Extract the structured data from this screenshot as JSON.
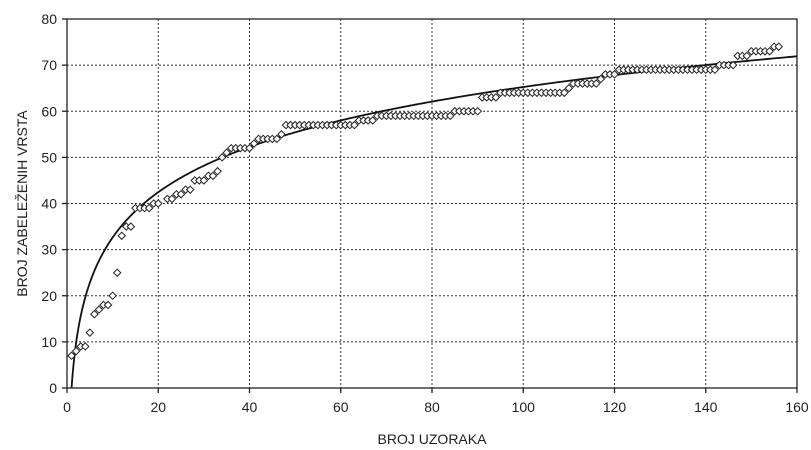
{
  "chart_data": {
    "type": "scatter",
    "title": "",
    "xlabel": "BROJ UZORAKA",
    "ylabel": "BROJ ZABELEŽENIH VRSTA",
    "xlim": [
      0,
      160
    ],
    "ylim": [
      0,
      80
    ],
    "x_ticks": [
      0,
      20,
      40,
      60,
      80,
      100,
      120,
      140,
      160
    ],
    "y_ticks": [
      0,
      10,
      20,
      30,
      40,
      50,
      60,
      70,
      80
    ],
    "grid": true,
    "marker": "diamond",
    "series": [
      {
        "points": [
          [
            1,
            7
          ],
          [
            2,
            8
          ],
          [
            3,
            9
          ],
          [
            4,
            9
          ],
          [
            5,
            12
          ],
          [
            6,
            16
          ],
          [
            7,
            17
          ],
          [
            8,
            18
          ],
          [
            9,
            18
          ],
          [
            10,
            20
          ],
          [
            11,
            25
          ],
          [
            12,
            33
          ],
          [
            13,
            35
          ],
          [
            14,
            35
          ],
          [
            15,
            39
          ],
          [
            16,
            39
          ],
          [
            17,
            39
          ],
          [
            18,
            39
          ],
          [
            19,
            40
          ],
          [
            20,
            40
          ],
          [
            22,
            41
          ],
          [
            23,
            41
          ],
          [
            24,
            42
          ],
          [
            25,
            42
          ],
          [
            26,
            43
          ],
          [
            27,
            43
          ],
          [
            28,
            45
          ],
          [
            29,
            45
          ],
          [
            30,
            45
          ],
          [
            31,
            46
          ],
          [
            32,
            46
          ],
          [
            33,
            47
          ],
          [
            34,
            50
          ],
          [
            35,
            51
          ],
          [
            36,
            52
          ],
          [
            37,
            52
          ],
          [
            38,
            52
          ],
          [
            39,
            52
          ],
          [
            40,
            52
          ],
          [
            41,
            53
          ],
          [
            42,
            54
          ],
          [
            43,
            54
          ],
          [
            44,
            54
          ],
          [
            45,
            54
          ],
          [
            46,
            54
          ],
          [
            47,
            55
          ],
          [
            48,
            57
          ],
          [
            49,
            57
          ],
          [
            50,
            57
          ],
          [
            51,
            57
          ],
          [
            52,
            57
          ],
          [
            53,
            57
          ],
          [
            54,
            57
          ],
          [
            55,
            57
          ],
          [
            56,
            57
          ],
          [
            57,
            57
          ],
          [
            58,
            57
          ],
          [
            59,
            57
          ],
          [
            60,
            57
          ],
          [
            61,
            57
          ],
          [
            62,
            57
          ],
          [
            63,
            57
          ],
          [
            64,
            58
          ],
          [
            65,
            58
          ],
          [
            66,
            58
          ],
          [
            67,
            58
          ],
          [
            68,
            59
          ],
          [
            69,
            59
          ],
          [
            70,
            59
          ],
          [
            71,
            59
          ],
          [
            72,
            59
          ],
          [
            73,
            59
          ],
          [
            74,
            59
          ],
          [
            75,
            59
          ],
          [
            76,
            59
          ],
          [
            77,
            59
          ],
          [
            78,
            59
          ],
          [
            79,
            59
          ],
          [
            80,
            59
          ],
          [
            81,
            59
          ],
          [
            82,
            59
          ],
          [
            83,
            59
          ],
          [
            84,
            59
          ],
          [
            85,
            60
          ],
          [
            86,
            60
          ],
          [
            87,
            60
          ],
          [
            88,
            60
          ],
          [
            89,
            60
          ],
          [
            90,
            60
          ],
          [
            91,
            63
          ],
          [
            92,
            63
          ],
          [
            93,
            63
          ],
          [
            94,
            63
          ],
          [
            95,
            64
          ],
          [
            96,
            64
          ],
          [
            97,
            64
          ],
          [
            98,
            64
          ],
          [
            99,
            64
          ],
          [
            100,
            64
          ],
          [
            101,
            64
          ],
          [
            102,
            64
          ],
          [
            103,
            64
          ],
          [
            104,
            64
          ],
          [
            105,
            64
          ],
          [
            106,
            64
          ],
          [
            107,
            64
          ],
          [
            108,
            64
          ],
          [
            109,
            64
          ],
          [
            110,
            65
          ],
          [
            111,
            66
          ],
          [
            112,
            66
          ],
          [
            113,
            66
          ],
          [
            114,
            66
          ],
          [
            115,
            66
          ],
          [
            116,
            66
          ],
          [
            117,
            67
          ],
          [
            118,
            68
          ],
          [
            119,
            68
          ],
          [
            120,
            68
          ],
          [
            121,
            69
          ],
          [
            122,
            69
          ],
          [
            123,
            69
          ],
          [
            124,
            69
          ],
          [
            125,
            69
          ],
          [
            126,
            69
          ],
          [
            127,
            69
          ],
          [
            128,
            69
          ],
          [
            129,
            69
          ],
          [
            130,
            69
          ],
          [
            131,
            69
          ],
          [
            132,
            69
          ],
          [
            133,
            69
          ],
          [
            134,
            69
          ],
          [
            135,
            69
          ],
          [
            136,
            69
          ],
          [
            137,
            69
          ],
          [
            138,
            69
          ],
          [
            139,
            69
          ],
          [
            140,
            69
          ],
          [
            141,
            69
          ],
          [
            142,
            69
          ],
          [
            143,
            70
          ],
          [
            144,
            70
          ],
          [
            145,
            70
          ],
          [
            146,
            70
          ],
          [
            147,
            72
          ],
          [
            148,
            72
          ],
          [
            149,
            72
          ],
          [
            150,
            73
          ],
          [
            151,
            73
          ],
          [
            152,
            73
          ],
          [
            153,
            73
          ],
          [
            154,
            73
          ],
          [
            155,
            74
          ],
          [
            156,
            74
          ]
        ]
      }
    ],
    "fit_curve": {
      "type": "logarithmic",
      "a": 0,
      "b": 14.17
    }
  }
}
